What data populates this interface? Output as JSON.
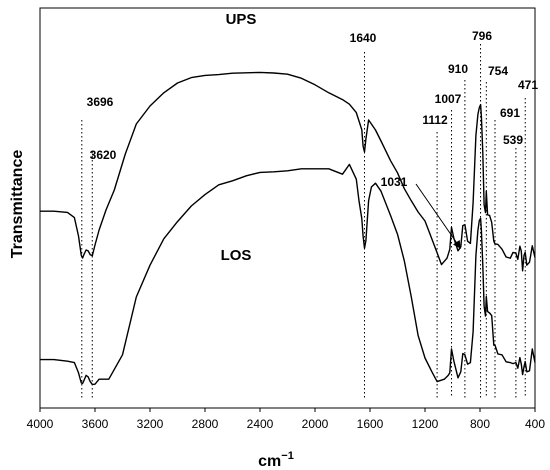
{
  "chart_data": {
    "type": "line",
    "title": "",
    "xlabel": "cm",
    "xlabel_superscript": "−1",
    "ylabel": "Transmittance",
    "xlim": [
      4000,
      400
    ],
    "x_reversed": true,
    "grid": false,
    "y_ticks_shown": false,
    "x_ticks": [
      4000,
      3600,
      3200,
      2800,
      2400,
      2000,
      1600,
      1200,
      800,
      400
    ],
    "series": [
      {
        "name": "UPS",
        "color": "#000000",
        "x": [
          4000,
          3900,
          3800,
          3750,
          3720,
          3700,
          3690,
          3680,
          3665,
          3650,
          3635,
          3620,
          3600,
          3570,
          3520,
          3460,
          3380,
          3300,
          3200,
          3100,
          3000,
          2900,
          2800,
          2700,
          2600,
          2500,
          2400,
          2300,
          2200,
          2100,
          2000,
          1900,
          1800,
          1750,
          1700,
          1680,
          1660,
          1650,
          1640,
          1630,
          1610,
          1590,
          1560,
          1520,
          1450,
          1400,
          1350,
          1300,
          1250,
          1200,
          1160,
          1112,
          1080,
          1040,
          1031,
          1020,
          1007,
          990,
          960,
          940,
          925,
          910,
          890,
          870,
          850,
          830,
          815,
          805,
          796,
          790,
          780,
          770,
          760,
          754,
          745,
          730,
          715,
          700,
          691,
          670,
          640,
          610,
          580,
          560,
          539,
          525,
          510,
          500,
          490,
          480,
          471,
          460,
          440,
          420,
          400
        ],
        "y": [
          98.4,
          98.4,
          97.8,
          95.2,
          86,
          76.3,
          75,
          76.8,
          79,
          78.6,
          76.7,
          76.1,
          81.5,
          89,
          99,
          109,
          127,
          142,
          151,
          157.6,
          162.5,
          165.2,
          166.3,
          166.7,
          167.4,
          167.6,
          167.8,
          167.5,
          166.9,
          164.9,
          161.6,
          157.6,
          154.2,
          151.9,
          147.7,
          143.5,
          139.1,
          130.9,
          128,
          134.5,
          144,
          142,
          139,
          133.5,
          123.6,
          117.6,
          109.6,
          103.6,
          98,
          93.5,
          86.3,
          77.6,
          71.7,
          74.9,
          76.8,
          79.4,
          90.3,
          84.8,
          78.6,
          80.6,
          91.2,
          91.7,
          83.4,
          82.3,
          102.6,
          136.2,
          146.8,
          150.2,
          151.7,
          145.7,
          127.7,
          101.6,
          97.7,
          108.3,
          96.6,
          96.3,
          92.8,
          83.4,
          82.1,
          81.8,
          79.4,
          75.5,
          74.9,
          77.8,
          77.4,
          74.3,
          80.9,
          78.4,
          68.6,
          76.3,
          77.8,
          71.4,
          72.9,
          81.1,
          75.2
        ]
      },
      {
        "name": "LOS",
        "color": "#000000",
        "x": [
          4000,
          3900,
          3800,
          3750,
          3720,
          3700,
          3690,
          3680,
          3665,
          3650,
          3635,
          3620,
          3600,
          3570,
          3500,
          3400,
          3300,
          3200,
          3100,
          3000,
          2900,
          2800,
          2700,
          2600,
          2500,
          2400,
          2300,
          2200,
          2100,
          2000,
          1900,
          1800,
          1750,
          1700,
          1680,
          1660,
          1650,
          1640,
          1630,
          1610,
          1590,
          1560,
          1520,
          1450,
          1400,
          1350,
          1300,
          1250,
          1200,
          1150,
          1112,
          1060,
          1031,
          1020,
          1007,
          990,
          960,
          940,
          925,
          910,
          890,
          870,
          850,
          830,
          815,
          805,
          796,
          790,
          780,
          770,
          760,
          754,
          745,
          730,
          715,
          700,
          691,
          670,
          640,
          610,
          580,
          560,
          539,
          525,
          510,
          500,
          490,
          480,
          471,
          460,
          440,
          420,
          400
        ],
        "y": [
          24.2,
          24.2,
          23.4,
          22.7,
          17.6,
          12.5,
          12.3,
          13.8,
          16.3,
          15.6,
          13.2,
          11.8,
          11.9,
          14.4,
          14.4,
          26.6,
          55.5,
          71.4,
          84.6,
          93.2,
          101,
          106.7,
          111.6,
          113.6,
          116.1,
          117.8,
          118.1,
          118.6,
          119.6,
          119.6,
          119.6,
          116.9,
          121.8,
          114.4,
          103.6,
          94.7,
          85.9,
          79.9,
          83.7,
          103.6,
          110.5,
          112.4,
          108.4,
          96.2,
          86.9,
          73.4,
          55.5,
          36.3,
          25,
          18.1,
          13.2,
          14.4,
          16.3,
          17.6,
          29.5,
          23.4,
          15.1,
          18.1,
          27.2,
          26.6,
          21.9,
          22.7,
          38.1,
          76.2,
          88.8,
          93.7,
          94.8,
          88.8,
          71.4,
          50.9,
          46,
          55.7,
          48.2,
          47.5,
          46.2,
          31.4,
          31.4,
          27,
          26.6,
          23.1,
          22.7,
          22.2,
          22.7,
          19.9,
          25.2,
          21.9,
          16.7,
          20.6,
          23.2,
          18.1,
          18.6,
          29.5,
          22.7
        ]
      }
    ],
    "vertical_markers": [
      3696,
      3620,
      1640,
      1112,
      1007,
      910,
      796,
      754,
      691,
      539,
      471
    ],
    "annotations": [
      {
        "text": "3696",
        "x": 3696,
        "y": 132
      },
      {
        "text": "3620",
        "x": 3620,
        "y": 107
      },
      {
        "text": "1640",
        "x": 1640,
        "y": 182
      },
      {
        "text": "1112",
        "x": 1112,
        "y": 125
      },
      {
        "text": "1007",
        "x": 1007,
        "y": 136
      },
      {
        "text": "910",
        "x": 910,
        "y": 154
      },
      {
        "text": "796",
        "x": 796,
        "y": 181
      },
      {
        "text": "754",
        "x": 754,
        "y": 153
      },
      {
        "text": "691",
        "x": 691,
        "y": 122
      },
      {
        "text": "539",
        "x": 539,
        "y": 106
      },
      {
        "text": "471",
        "x": 471,
        "y": 132
      },
      {
        "text": "1031",
        "x": 1031,
        "y": 91,
        "arrow_to": {
          "x": 936,
          "y": 79
        }
      }
    ]
  }
}
